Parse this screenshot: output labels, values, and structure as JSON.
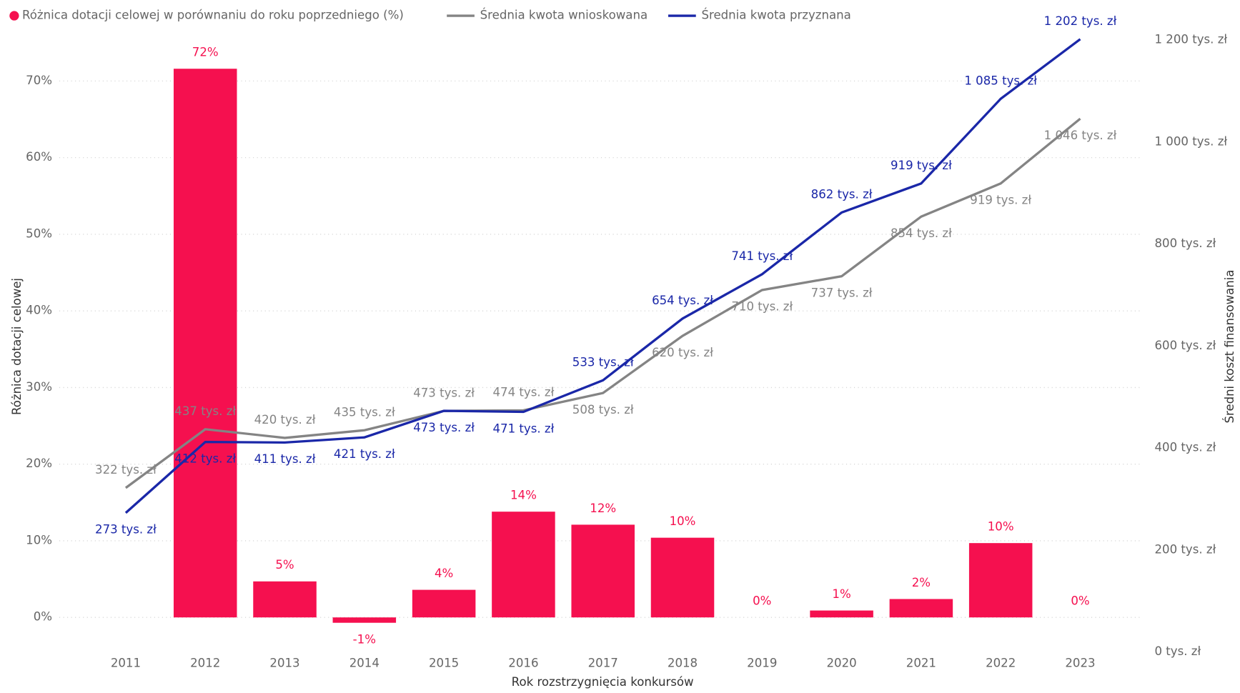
{
  "chart_data": {
    "type": "bar-line",
    "legend": [
      "Różnica dotacji celowej w porównaniu do roku poprzedniego (%)",
      "Średnia kwota wnioskowana",
      "Średnia kwota przyznana"
    ],
    "xlabel": "Rok rozstrzygnięcia konkursów",
    "ylabel": "Różnica dotacji celowej",
    "y2label": "Średni koszt finansowania",
    "categories": [
      "2011",
      "2012",
      "2013",
      "2014",
      "2015",
      "2016",
      "2017",
      "2018",
      "2019",
      "2020",
      "2021",
      "2022",
      "2023"
    ],
    "bars": {
      "name": "Różnica dotacji celowej w porównaniu do roku poprzedniego (%)",
      "color": "#f5104f",
      "values": [
        null,
        71.6,
        4.7,
        -0.7,
        3.6,
        13.8,
        12.1,
        10.4,
        0,
        0.9,
        2.4,
        9.7,
        0
      ],
      "value_labels": [
        null,
        "72%",
        "5%",
        "-1%",
        "4%",
        "14%",
        "12%",
        "10%",
        "0%",
        "1%",
        "2%",
        "10%",
        "0%"
      ]
    },
    "series": [
      {
        "name": "Średnia kwota wnioskowana",
        "color": "#848484",
        "axis": "y2",
        "values": [
          322,
          437,
          420,
          435,
          473,
          474,
          508,
          620,
          710,
          737,
          854,
          919,
          1046
        ],
        "value_labels": [
          "322 tys. zł",
          "437 tys. zł",
          "420 tys. zł",
          "435 tys. zł",
          "473 tys. zł",
          "474 tys. zł",
          "508 tys. zł",
          "620 tys. zł",
          "710 tys. zł",
          "737 tys. zł",
          "854 tys. zł",
          "919 tys. zł",
          "1 046 tys. zł"
        ]
      },
      {
        "name": "Średnia kwota przyznana",
        "color": "#1a27a8",
        "axis": "y2",
        "values": [
          273,
          412,
          411,
          421,
          473,
          471,
          533,
          654,
          741,
          862,
          919,
          1085,
          1202
        ],
        "value_labels": [
          "273 tys. zł",
          "412 tys. zł",
          "411 tys. zł",
          "421 tys. zł",
          "473 tys. zł",
          "471 tys. zł",
          "533 tys. zł",
          "654 tys. zł",
          "741 tys. zł",
          "862 tys. zł",
          "919 tys. zł",
          "1 085 tys. zł",
          "1 202 tys. zł"
        ]
      }
    ],
    "ylim": [
      -4.52,
      75.33
    ],
    "yticks": [
      {
        "value": 0,
        "label": "0%"
      },
      {
        "value": 10,
        "label": "10%"
      },
      {
        "value": 20,
        "label": "20%"
      },
      {
        "value": 30,
        "label": "30%"
      },
      {
        "value": 40,
        "label": "40%"
      },
      {
        "value": 50,
        "label": "50%"
      },
      {
        "value": 60,
        "label": "60%"
      },
      {
        "value": 70,
        "label": "70%"
      }
    ],
    "y2lim": [
      0,
      1200
    ],
    "y2ticks": [
      {
        "value": 0,
        "label": "0 tys. zł"
      },
      {
        "value": 200,
        "label": "200 tys. zł"
      },
      {
        "value": 400,
        "label": "400 tys. zł"
      },
      {
        "value": 600,
        "label": "600 tys. zł"
      },
      {
        "value": 800,
        "label": "800 tys. zł"
      },
      {
        "value": 1000,
        "label": "1 000 tys. zł"
      },
      {
        "value": 1200,
        "label": "1 200 tys. zł"
      }
    ],
    "grid": true
  }
}
